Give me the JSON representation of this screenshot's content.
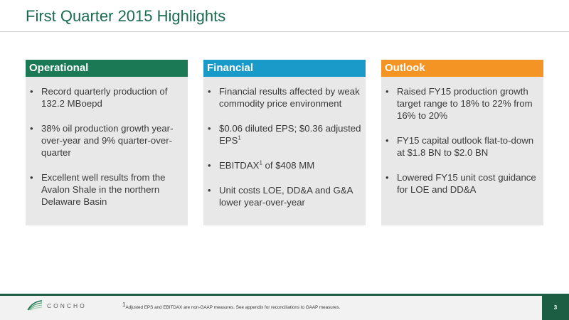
{
  "header": {
    "title": "First Quarter 2015 Highlights"
  },
  "cards": [
    {
      "heading": "Operational",
      "items": [
        {
          "text": "Record quarterly production of 132.2 MBoepd"
        },
        {
          "text": "38% oil production growth year-over-year and 9% quarter-over-quarter"
        },
        {
          "text": "Excellent well results from the Avalon Shale in the northern Delaware Basin"
        }
      ]
    },
    {
      "heading": "Financial",
      "items": [
        {
          "text": "Financial results affected by weak commodity price environment"
        },
        {
          "text": "$0.06 diluted EPS; $0.36 adjusted EPS",
          "sup": "1"
        },
        {
          "text_before": "EBITDAX",
          "sup": "1",
          "text_after": " of $408 MM"
        },
        {
          "text": "Unit costs LOE, DD&A and G&A lower year-over-year"
        }
      ]
    },
    {
      "heading": "Outlook",
      "items": [
        {
          "text": "Raised FY15 production growth target range to 18% to 22% from 16% to 20%"
        },
        {
          "text": "FY15 capital outlook flat-to-down at $1.8 BN to $2.0 BN"
        },
        {
          "text": "Lowered FY15 unit cost guidance for LOE and DD&A"
        }
      ]
    }
  ],
  "footer": {
    "logo_text": "CONCHO",
    "footnote_sup": "1",
    "footnote": "Adjusted EPS and EBITDAX are non-GAAP measures.  See appendix for reconciliations to GAAP measures.",
    "page_number": "3"
  },
  "colors": {
    "title": "#1b6b4e",
    "operational": "#1b7a55",
    "financial": "#1a9ac9",
    "outlook": "#f39424",
    "footer_green": "#1b5e44"
  }
}
